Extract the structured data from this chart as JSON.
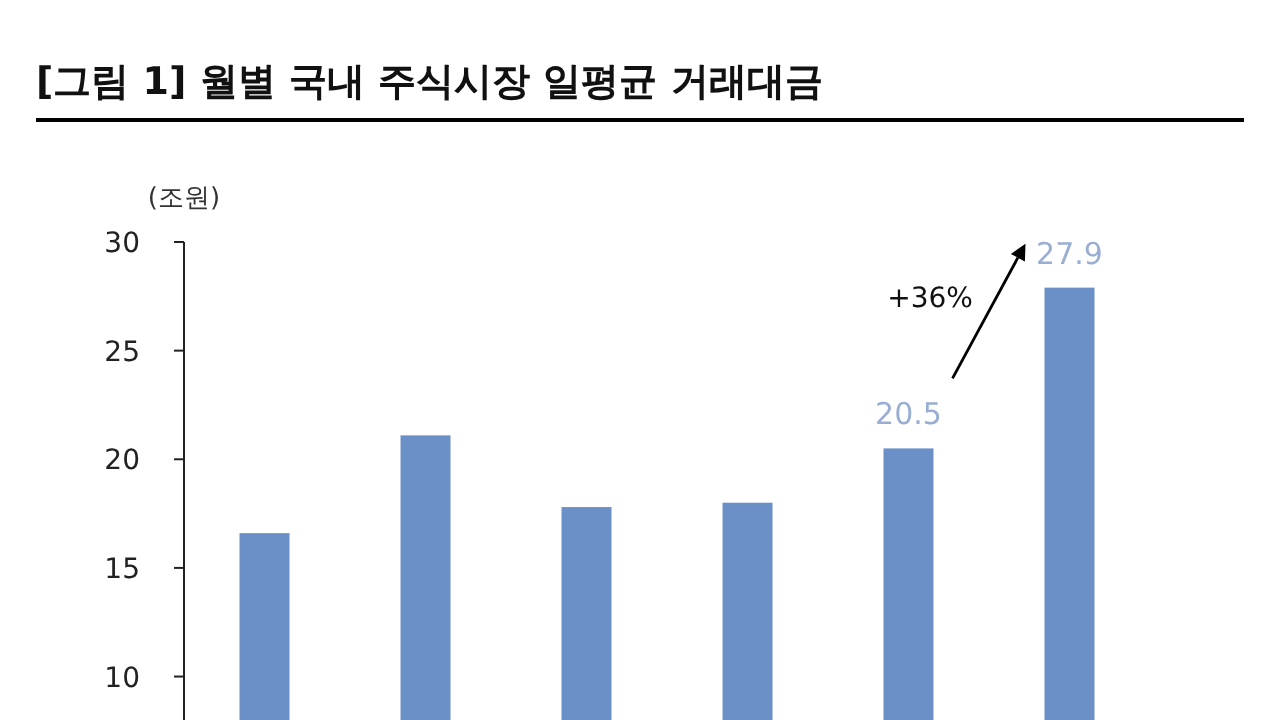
{
  "chart_data": {
    "type": "bar",
    "title": "[그림 1] 월별 국내 주식시장 일평균 거래대금",
    "ylabel": "(조원)",
    "categories": [
      null,
      null,
      null,
      null,
      null,
      null
    ],
    "values": [
      16.6,
      21.1,
      17.8,
      18.0,
      20.5,
      27.9
    ],
    "value_labels": [
      null,
      null,
      null,
      null,
      "20.5",
      "27.9"
    ],
    "color": "#6b8fc7",
    "ylim": [
      8,
      30
    ],
    "yticks": [
      10,
      15,
      20,
      25,
      30
    ],
    "annotations": [
      "+36%"
    ],
    "grid": false
  }
}
